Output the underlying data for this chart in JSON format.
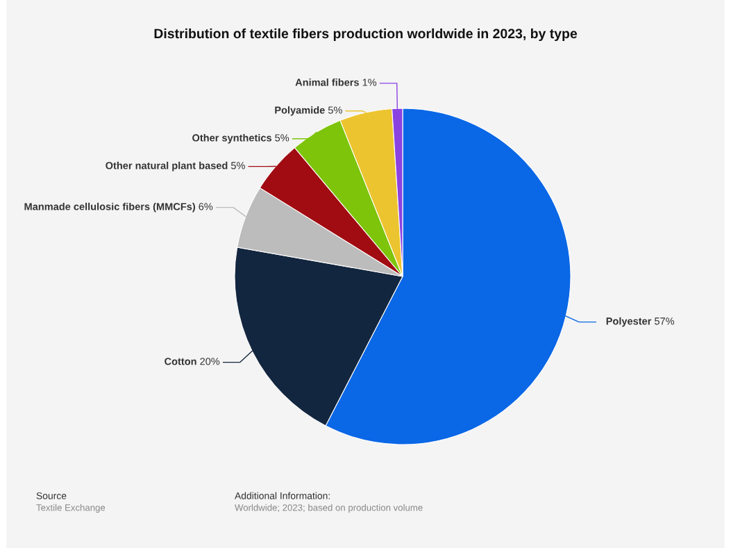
{
  "chart_data": {
    "type": "pie",
    "title": "Distribution of textile fibers production worldwide in 2023, by type",
    "categories": [
      "Polyester",
      "Cotton",
      "Manmade cellulosic fibers (MMCFs)",
      "Other natural plant based",
      "Other synthetics",
      "Polyamide",
      "Animal fibers"
    ],
    "values": [
      57,
      20,
      6,
      5,
      5,
      5,
      1
    ],
    "value_labels": [
      "57%",
      "20%",
      "6%",
      "5%",
      "5%",
      "5%",
      "1%"
    ],
    "colors": [
      "#0a67e6",
      "#13263f",
      "#bcbcbc",
      "#a10c12",
      "#7ec40b",
      "#ecc430",
      "#8a42e1"
    ],
    "legend": false,
    "annotations": [
      "Source",
      "Textile Exchange",
      "Additional Information:",
      "Worldwide; 2023; based on production volume"
    ]
  }
}
